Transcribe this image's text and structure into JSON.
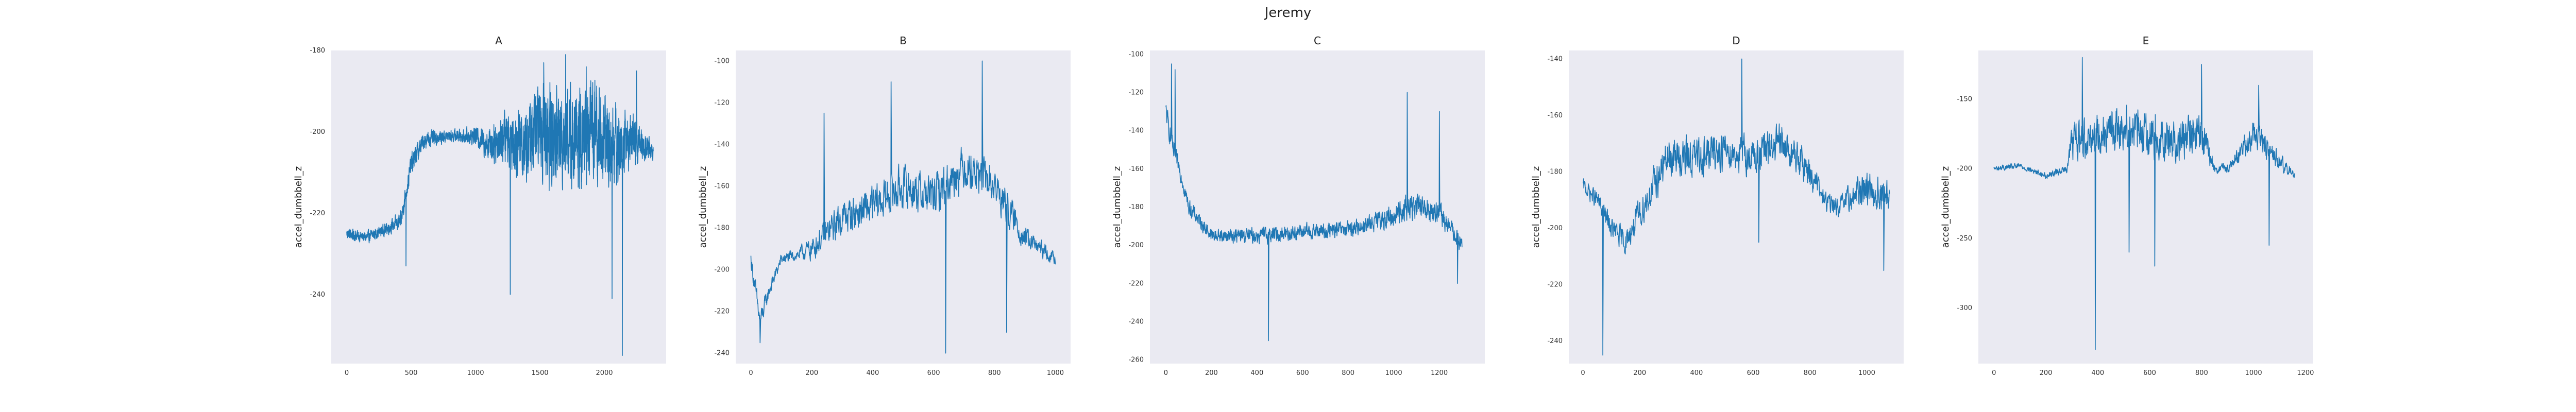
{
  "figure_title": "Jeremy",
  "line_color": "#1f77b4",
  "panel_bg": "#eaeaf2",
  "chart_data": [
    {
      "type": "line",
      "title": "A",
      "xlabel": "",
      "ylabel": "accel_dumbbell_z",
      "xlim": [
        -120,
        2480
      ],
      "ylim": [
        -257,
        -180
      ],
      "xticks": [
        0,
        500,
        1000,
        1500,
        2000
      ],
      "xtick_labels": [
        "0",
        "500",
        "1000",
        "1500",
        "2000"
      ],
      "yticks": [
        -180,
        -190,
        -200,
        -210,
        -220,
        -230,
        -240,
        -250
      ],
      "ytick_labels": [
        "-180",
        "",
        "-200",
        "",
        "-220",
        "",
        "-240",
        ""
      ],
      "series": [
        {
          "name": "accel_dumbbell_z",
          "n_points": 2380,
          "points": [
            [
              0,
              -225
            ],
            [
              150,
              -226
            ],
            [
              300,
              -224
            ],
            [
              420,
              -222
            ],
            [
              500,
              -208
            ],
            [
              600,
              -202
            ],
            [
              800,
              -201
            ],
            [
              1000,
              -201
            ],
            [
              1100,
              -203
            ],
            [
              1250,
              -201
            ],
            [
              1400,
              -203
            ],
            [
              1500,
              -198
            ],
            [
              1600,
              -202
            ],
            [
              1700,
              -200
            ],
            [
              1800,
              -203
            ],
            [
              1900,
              -199
            ],
            [
              2000,
              -202
            ],
            [
              2100,
              -204
            ],
            [
              2200,
              -202
            ],
            [
              2300,
              -203
            ],
            [
              2380,
              -205
            ]
          ],
          "noise": [
            2,
            2,
            2,
            3,
            4,
            3,
            2,
            3,
            6,
            10,
            14,
            16,
            18,
            18,
            18,
            18,
            16,
            14,
            10,
            6,
            3
          ],
          "peaks": [
            [
              460,
              -233
            ],
            [
              1270,
              -240
            ],
            [
              1530,
              -183
            ],
            [
              1700,
              -181
            ],
            [
              1860,
              -184
            ],
            [
              2060,
              -241
            ],
            [
              2140,
              -255
            ],
            [
              2250,
              -185
            ]
          ]
        }
      ]
    },
    {
      "type": "line",
      "title": "B",
      "xlabel": "",
      "ylabel": "accel_dumbbell_z",
      "xlim": [
        -50,
        1050
      ],
      "ylim": [
        -245,
        -95
      ],
      "xticks": [
        0,
        200,
        400,
        600,
        800,
        1000
      ],
      "xtick_labels": [
        "0",
        "200",
        "400",
        "600",
        "800",
        "1000"
      ],
      "yticks": [
        -100,
        -120,
        -140,
        -160,
        -180,
        -200,
        -220,
        -240
      ],
      "ytick_labels": [
        "-100",
        "-120",
        "-140",
        "-160",
        "-180",
        "-200",
        "-220",
        "-240"
      ],
      "series": [
        {
          "name": "accel_dumbbell_z",
          "n_points": 1000,
          "points": [
            [
              0,
              -195
            ],
            [
              30,
              -225
            ],
            [
              60,
              -210
            ],
            [
              100,
              -195
            ],
            [
              150,
              -193
            ],
            [
              200,
              -190
            ],
            [
              300,
              -175
            ],
            [
              400,
              -170
            ],
            [
              500,
              -160
            ],
            [
              600,
              -165
            ],
            [
              700,
              -150
            ],
            [
              800,
              -160
            ],
            [
              900,
              -185
            ],
            [
              1000,
              -195
            ]
          ],
          "noise": [
            6,
            8,
            5,
            4,
            4,
            8,
            12,
            14,
            15,
            15,
            15,
            14,
            8,
            4
          ],
          "peaks": [
            [
              30,
              -235
            ],
            [
              240,
              -125
            ],
            [
              460,
              -110
            ],
            [
              640,
              -240
            ],
            [
              760,
              -100
            ],
            [
              840,
              -230
            ]
          ]
        }
      ]
    },
    {
      "type": "line",
      "title": "C",
      "xlabel": "",
      "ylabel": "accel_dumbbell_z",
      "xlim": [
        -70,
        1400
      ],
      "ylim": [
        -262,
        -98
      ],
      "xticks": [
        0,
        200,
        400,
        600,
        800,
        1000,
        1200
      ],
      "xtick_labels": [
        "0",
        "200",
        "400",
        "600",
        "800",
        "1000",
        "1200"
      ],
      "yticks": [
        -100,
        -120,
        -140,
        -160,
        -180,
        -200,
        -220,
        -240,
        -260
      ],
      "ytick_labels": [
        "-100",
        "-120",
        "-140",
        "-160",
        "-180",
        "-200",
        "-220",
        "-240",
        "-260"
      ],
      "series": [
        {
          "name": "accel_dumbbell_z",
          "n_points": 1320,
          "points": [
            [
              0,
              -130
            ],
            [
              30,
              -150
            ],
            [
              60,
              -160
            ],
            [
              100,
              -180
            ],
            [
              200,
              -195
            ],
            [
              400,
              -195
            ],
            [
              600,
              -193
            ],
            [
              800,
              -192
            ],
            [
              1000,
              -185
            ],
            [
              1050,
              -180
            ],
            [
              1100,
              -180
            ],
            [
              1200,
              -183
            ],
            [
              1300,
              -200
            ]
          ],
          "noise": [
            8,
            8,
            6,
            6,
            5,
            6,
            6,
            6,
            8,
            10,
            10,
            8,
            6
          ],
          "peaks": [
            [
              25,
              -105
            ],
            [
              40,
              -108
            ],
            [
              450,
              -250
            ],
            [
              1060,
              -120
            ],
            [
              1200,
              -130
            ],
            [
              1280,
              -220
            ]
          ]
        }
      ]
    },
    {
      "type": "line",
      "title": "D",
      "xlabel": "",
      "ylabel": "accel_dumbbell_z",
      "xlim": [
        -50,
        1130
      ],
      "ylim": [
        -248,
        -137
      ],
      "xticks": [
        0,
        200,
        400,
        600,
        800,
        1000
      ],
      "xtick_labels": [
        "0",
        "200",
        "400",
        "600",
        "800",
        "1000"
      ],
      "yticks": [
        -140,
        -160,
        -180,
        -200,
        -220,
        -240
      ],
      "ytick_labels": [
        "-140",
        "-160",
        "-180",
        "-200",
        "-220",
        "-240"
      ],
      "series": [
        {
          "name": "accel_dumbbell_z",
          "n_points": 1080,
          "points": [
            [
              0,
              -185
            ],
            [
              50,
              -190
            ],
            [
              100,
              -200
            ],
            [
              150,
              -205
            ],
            [
              200,
              -195
            ],
            [
              300,
              -175
            ],
            [
              400,
              -175
            ],
            [
              500,
              -172
            ],
            [
              600,
              -175
            ],
            [
              700,
              -170
            ],
            [
              800,
              -180
            ],
            [
              850,
              -190
            ],
            [
              900,
              -193
            ],
            [
              1000,
              -185
            ],
            [
              1080,
              -190
            ]
          ],
          "noise": [
            4,
            5,
            6,
            6,
            8,
            10,
            10,
            10,
            10,
            10,
            8,
            5,
            5,
            10,
            10
          ],
          "peaks": [
            [
              70,
              -245
            ],
            [
              560,
              -140
            ],
            [
              620,
              -205
            ],
            [
              1060,
              -215
            ]
          ]
        }
      ]
    },
    {
      "type": "line",
      "title": "E",
      "xlabel": "",
      "ylabel": "accel_dumbbell_z",
      "xlim": [
        -60,
        1230
      ],
      "ylim": [
        -340,
        -115
      ],
      "xticks": [
        0,
        200,
        400,
        600,
        800,
        1000,
        1200
      ],
      "xtick_labels": [
        "0",
        "200",
        "400",
        "600",
        "800",
        "1000",
        "1200"
      ],
      "yticks": [
        -150,
        -200,
        -250,
        -300
      ],
      "ytick_labels": [
        "-150",
        "-200",
        "-250",
        "-300"
      ],
      "series": [
        {
          "name": "accel_dumbbell_z",
          "n_points": 1160,
          "points": [
            [
              0,
              -200
            ],
            [
              100,
              -198
            ],
            [
              200,
              -205
            ],
            [
              280,
              -200
            ],
            [
              300,
              -180
            ],
            [
              400,
              -175
            ],
            [
              500,
              -170
            ],
            [
              600,
              -175
            ],
            [
              700,
              -180
            ],
            [
              800,
              -175
            ],
            [
              850,
              -200
            ],
            [
              900,
              -200
            ],
            [
              1000,
              -175
            ],
            [
              1100,
              -195
            ],
            [
              1160,
              -205
            ]
          ],
          "noise": [
            3,
            3,
            3,
            4,
            20,
            22,
            22,
            22,
            22,
            22,
            5,
            5,
            15,
            10,
            3
          ],
          "peaks": [
            [
              390,
              -330
            ],
            [
              340,
              -120
            ],
            [
              520,
              -260
            ],
            [
              620,
              -270
            ],
            [
              800,
              -125
            ],
            [
              1020,
              -140
            ],
            [
              1060,
              -255
            ]
          ]
        }
      ]
    }
  ]
}
